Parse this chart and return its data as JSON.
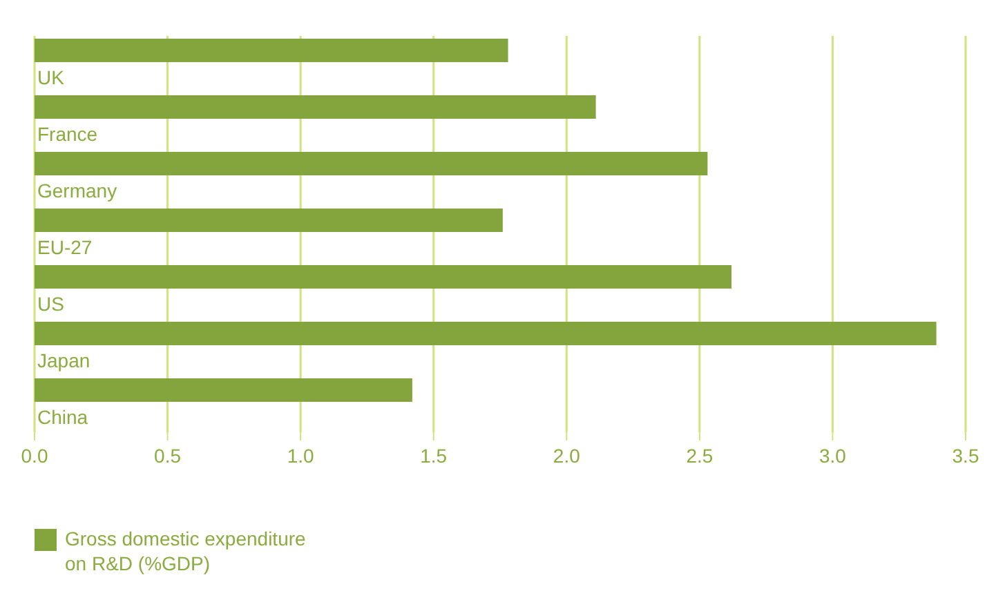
{
  "chart_data": {
    "type": "bar",
    "orientation": "horizontal",
    "categories": [
      "UK",
      "France",
      "Germany",
      "EU-27",
      "US",
      "Japan",
      "China"
    ],
    "series": [
      {
        "name": "Gross domestic expenditure on R&D (%GDP)",
        "color": "#84a53d",
        "values": [
          1.78,
          2.11,
          2.53,
          1.76,
          2.62,
          3.39,
          1.42
        ]
      }
    ],
    "xlim": [
      0,
      3.5
    ],
    "xticks": [
      {
        "value": 0,
        "label": "0.0"
      },
      0.5,
      {
        "value": 1,
        "label": "1.0"
      },
      1.5,
      {
        "value": 2,
        "label": "2.0"
      },
      2.5,
      {
        "value": 3,
        "label": "3.0"
      },
      3.5
    ],
    "grid": "x",
    "legend": "bottom left"
  }
}
